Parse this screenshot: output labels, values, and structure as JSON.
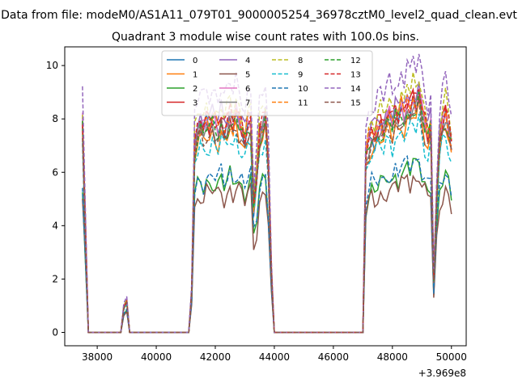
{
  "figure": {
    "suptitle": "Data from file: modeM0/AS1A11_079T01_9000005254_36978cztM0_level2_quad_clean.evt",
    "title": "Quadrant 3 module wise count rates with 100.0s bins.",
    "offset_label": "+3.969e8"
  },
  "chart_data": {
    "type": "line",
    "title": "Quadrant 3 module wise count rates with 100.0s bins.",
    "xlabel": "",
    "ylabel": "",
    "x_offset": 396900000,
    "xlim": [
      36900,
      50500
    ],
    "ylim": [
      -0.5,
      10.7
    ],
    "xticks": [
      38000,
      40000,
      42000,
      44000,
      46000,
      48000,
      50000
    ],
    "xtick_labels": [
      "38000",
      "40000",
      "42000",
      "44000",
      "46000",
      "48000",
      "50000"
    ],
    "yticks": [
      0,
      2,
      4,
      6,
      8,
      10
    ],
    "ytick_labels": [
      "0",
      "2",
      "4",
      "6",
      "8",
      "10"
    ],
    "grid": false,
    "legend": {
      "placement": "top-center",
      "columns": 4
    },
    "series": [
      {
        "name": "0",
        "color": "#1f77b4",
        "dash": "solid",
        "level": 7.7,
        "peak": 8.0
      },
      {
        "name": "1",
        "color": "#ff7f0e",
        "dash": "solid",
        "level": 7.3,
        "peak": 8.1
      },
      {
        "name": "2",
        "color": "#2ca02c",
        "dash": "solid",
        "level": 5.6,
        "peak": 6.4
      },
      {
        "name": "3",
        "color": "#d62728",
        "dash": "solid",
        "level": 7.9,
        "peak": 8.4
      },
      {
        "name": "4",
        "color": "#9467bd",
        "dash": "solid",
        "level": 8.1,
        "peak": 8.9
      },
      {
        "name": "5",
        "color": "#8c564b",
        "dash": "solid",
        "level": 5.2,
        "peak": 5.9
      },
      {
        "name": "6",
        "color": "#e377c2",
        "dash": "solid",
        "level": 7.8,
        "peak": 8.8
      },
      {
        "name": "7",
        "color": "#7f7f7f",
        "dash": "solid",
        "level": 7.6,
        "peak": 8.3
      },
      {
        "name": "8",
        "color": "#bcbd22",
        "dash": "dashed",
        "level": 8.3,
        "peak": 9.3
      },
      {
        "name": "9",
        "color": "#17becf",
        "dash": "dashed",
        "level": 7.0,
        "peak": 7.5
      },
      {
        "name": "10",
        "color": "#1f77b4",
        "dash": "dashed",
        "level": 5.8,
        "peak": 6.6
      },
      {
        "name": "11",
        "color": "#ff7f0e",
        "dash": "dashed",
        "level": 7.8,
        "peak": 8.9
      },
      {
        "name": "12",
        "color": "#2ca02c",
        "dash": "dashed",
        "level": 7.6,
        "peak": 8.2
      },
      {
        "name": "13",
        "color": "#d62728",
        "dash": "dashed",
        "level": 7.9,
        "peak": 8.6
      },
      {
        "name": "14",
        "color": "#9467bd",
        "dash": "dashed",
        "level": 9.0,
        "peak": 10.2
      },
      {
        "name": "15",
        "color": "#8c564b",
        "dash": "dashed",
        "level": 7.4,
        "peak": 8.0
      }
    ],
    "x": [
      37500,
      37600,
      37700,
      37800,
      37900,
      38000,
      38100,
      38200,
      38300,
      38400,
      38500,
      38600,
      38700,
      38800,
      38900,
      39000,
      39100,
      39200,
      39300,
      39400,
      39500,
      39600,
      39700,
      39800,
      39900,
      40000,
      40100,
      40200,
      40300,
      40400,
      40500,
      40600,
      40700,
      40800,
      40900,
      41000,
      41100,
      41200,
      41300,
      41400,
      41500,
      41600,
      41700,
      41800,
      41900,
      42000,
      42100,
      42200,
      42300,
      42400,
      42500,
      42600,
      42700,
      42800,
      42900,
      43000,
      43100,
      43200,
      43300,
      43400,
      43500,
      43600,
      43700,
      43800,
      43900,
      44000,
      44100,
      44200,
      44300,
      44400,
      44500,
      44600,
      44700,
      44800,
      44900,
      45000,
      45100,
      45200,
      45300,
      45400,
      45500,
      45600,
      45700,
      45800,
      45900,
      46000,
      46100,
      46200,
      46300,
      46400,
      46500,
      46600,
      46700,
      46800,
      46900,
      47000,
      47100,
      47200,
      47300,
      47400,
      47500,
      47600,
      47700,
      47800,
      47900,
      48000,
      48100,
      48200,
      48300,
      48400,
      48500,
      48600,
      48700,
      48800,
      48900,
      49000,
      49100,
      49200,
      49300,
      49400,
      49500,
      49600,
      49700,
      49800,
      49900,
      50000
    ],
    "profile": [
      1.0,
      0.5,
      0.0,
      0.0,
      0.0,
      0.0,
      0.0,
      0.0,
      0.0,
      0.0,
      0.0,
      0.0,
      0.0,
      0.0,
      0.12,
      0.15,
      0.0,
      0.0,
      0.0,
      0.0,
      0.0,
      0.0,
      0.0,
      0.0,
      0.0,
      0.0,
      0.0,
      0.0,
      0.0,
      0.0,
      0.0,
      0.0,
      0.0,
      0.0,
      0.0,
      0.0,
      0.0,
      0.2,
      0.9,
      0.96,
      1.0,
      0.97,
      1.01,
      0.99,
      1.02,
      1.0,
      0.98,
      1.03,
      0.97,
      1.0,
      1.04,
      0.99,
      1.05,
      1.01,
      0.98,
      0.93,
      1.0,
      1.02,
      0.62,
      0.75,
      0.95,
      0.99,
      1.03,
      0.8,
      0.3,
      0.0,
      0.0,
      0.0,
      0.0,
      0.0,
      0.0,
      0.0,
      0.0,
      0.0,
      0.0,
      0.0,
      0.0,
      0.0,
      0.0,
      0.0,
      0.0,
      0.0,
      0.0,
      0.0,
      0.0,
      0.0,
      0.0,
      0.0,
      0.0,
      0.0,
      0.0,
      0.0,
      0.0,
      0.0,
      0.0,
      0.0,
      0.85,
      0.92,
      0.96,
      0.94,
      0.98,
      1.0,
      0.97,
      1.02,
      1.04,
      1.0,
      1.06,
      1.03,
      1.08,
      1.05,
      1.1,
      1.07,
      1.12,
      1.09,
      1.15,
      1.06,
      1.0,
      0.95,
      1.0,
      0.25,
      0.65,
      0.92,
      1.0,
      1.05,
      0.98,
      0.9
    ]
  }
}
